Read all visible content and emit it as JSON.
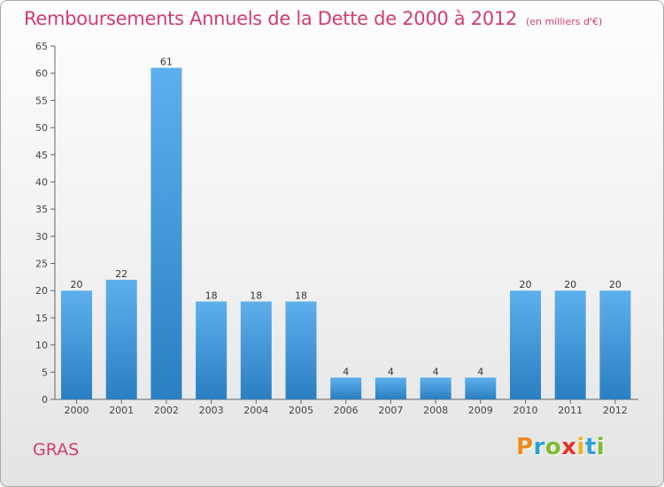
{
  "header": {
    "title": "Remboursements Annuels de la Dette de 2000 à 2012",
    "unit": "(en milliers d'€)"
  },
  "footer": {
    "commune": "GRAS",
    "logo_letters": [
      "P",
      "r",
      "o",
      "x",
      "i",
      "t",
      "i"
    ],
    "logo_colors": [
      "#f08a1c",
      "#2f9fd8",
      "#7dbb2c",
      "#e5322d",
      "#f2b21c",
      "#2f9fd8",
      "#7dbb2c"
    ]
  },
  "chart_data": {
    "type": "bar",
    "title": "Remboursements Annuels de la Dette de 2000 à 2012",
    "xlabel": "",
    "ylabel": "",
    "categories": [
      "2000",
      "2001",
      "2002",
      "2003",
      "2004",
      "2005",
      "2006",
      "2007",
      "2008",
      "2009",
      "2010",
      "2011",
      "2012"
    ],
    "values": [
      20,
      22,
      61,
      18,
      18,
      18,
      4,
      4,
      4,
      4,
      20,
      20,
      20
    ],
    "ylim": [
      0,
      65
    ],
    "yticks": [
      0,
      5,
      10,
      15,
      20,
      25,
      30,
      35,
      40,
      45,
      50,
      55,
      60,
      65
    ],
    "grid": false,
    "bar_color_top": "#5db0ec",
    "bar_color_bottom": "#2a7fc2"
  }
}
